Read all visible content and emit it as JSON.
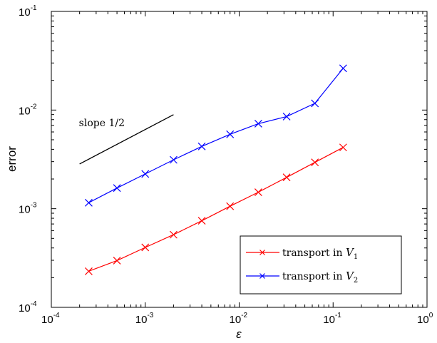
{
  "chart_data": {
    "type": "line",
    "xscale": "log",
    "yscale": "log",
    "xlim": [
      0.0001,
      1
    ],
    "ylim": [
      0.0001,
      0.1
    ],
    "x_ticks": [
      0.0001,
      0.001,
      0.01,
      0.1,
      1
    ],
    "y_ticks": [
      0.0001,
      0.001,
      0.01,
      0.1
    ],
    "x_tick_labels": [
      {
        "base": "10",
        "exp": "-4"
      },
      {
        "base": "10",
        "exp": "-3"
      },
      {
        "base": "10",
        "exp": "-2"
      },
      {
        "base": "10",
        "exp": "-1"
      },
      {
        "base": "10",
        "exp": "0"
      }
    ],
    "y_tick_labels": [
      {
        "base": "10",
        "exp": "-4"
      },
      {
        "base": "10",
        "exp": "-3"
      },
      {
        "base": "10",
        "exp": "-2"
      },
      {
        "base": "10",
        "exp": "-1"
      }
    ],
    "xlabel": "ε",
    "ylabel": "error",
    "grid": false,
    "legend": "bottom-right",
    "series": [
      {
        "name_prefix": "transport in ",
        "name_var": "V",
        "name_sub": "1",
        "color": "#ff0000",
        "marker": "x",
        "x": [
          0.00025,
          0.0005,
          0.001,
          0.002,
          0.004,
          0.008,
          0.016,
          0.032,
          0.064,
          0.128
        ],
        "y": [
          0.000232,
          0.000298,
          0.000405,
          0.000545,
          0.000755,
          0.00106,
          0.00147,
          0.00208,
          0.00295,
          0.00418
        ]
      },
      {
        "name_prefix": "transport in ",
        "name_var": "V",
        "name_sub": "2",
        "color": "#0000ff",
        "marker": "x",
        "x": [
          0.00025,
          0.0005,
          0.001,
          0.002,
          0.004,
          0.008,
          0.016,
          0.032,
          0.064,
          0.128
        ],
        "y": [
          0.00115,
          0.00162,
          0.00225,
          0.00313,
          0.00428,
          0.00568,
          0.00728,
          0.0086,
          0.0117,
          0.0265
        ]
      }
    ],
    "annotations": [
      {
        "text": "slope 1/2",
        "line_x": [
          0.0002,
          0.002
        ],
        "line_y": [
          0.00284,
          0.00898
        ],
        "color": "#000000"
      }
    ]
  }
}
